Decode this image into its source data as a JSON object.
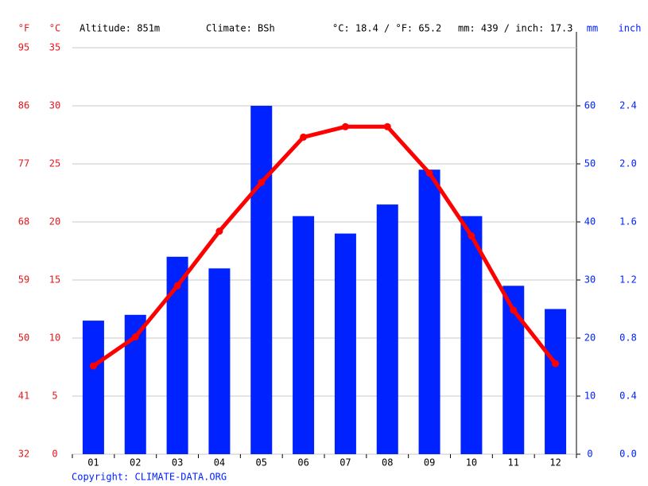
{
  "chart_data": {
    "type": "bar-line",
    "header": [
      "Altitude: 851m",
      "Climate: BSh",
      "°C: 18.4 / °F: 65.2",
      "mm: 439 / inch: 17.3"
    ],
    "copyright": "Copyright: CLIMATE-DATA.ORG",
    "categories": [
      "01",
      "02",
      "03",
      "04",
      "05",
      "06",
      "07",
      "08",
      "09",
      "10",
      "11",
      "12"
    ],
    "series": [
      {
        "name": "mm",
        "color": "#0022ff",
        "axis": "y2",
        "kind": "bar",
        "values": [
          23,
          24,
          34,
          32,
          60,
          41,
          38,
          43,
          49,
          41,
          29,
          25
        ]
      },
      {
        "name": "°C",
        "color": "#ff0000",
        "axis": "y",
        "kind": "line",
        "values": [
          7.6,
          10.1,
          14.5,
          19.2,
          23.4,
          27.3,
          28.2,
          28.2,
          24.2,
          18.8,
          12.4,
          7.8
        ]
      }
    ],
    "ylabel": "°C",
    "ylim": [
      0,
      35
    ],
    "yticks": [
      0,
      5,
      10,
      15,
      20,
      25,
      30,
      35
    ],
    "yflabel": "°F",
    "yflim": [
      32,
      95
    ],
    "yfticks": [
      32,
      41,
      50,
      59,
      68,
      77,
      86,
      95
    ],
    "y2label": "mm",
    "y2lim": [
      0,
      70
    ],
    "y2ticks": [
      0,
      10,
      20,
      30,
      40,
      50,
      60
    ],
    "y3label": "inch",
    "y3lim": [
      0,
      2.8
    ],
    "y3ticks": [
      {
        "value": 0,
        "label": "0.0"
      },
      0.4,
      0.8,
      1.2,
      1.6,
      {
        "value": 2,
        "label": "2.0"
      },
      2.4
    ],
    "grid": true
  }
}
